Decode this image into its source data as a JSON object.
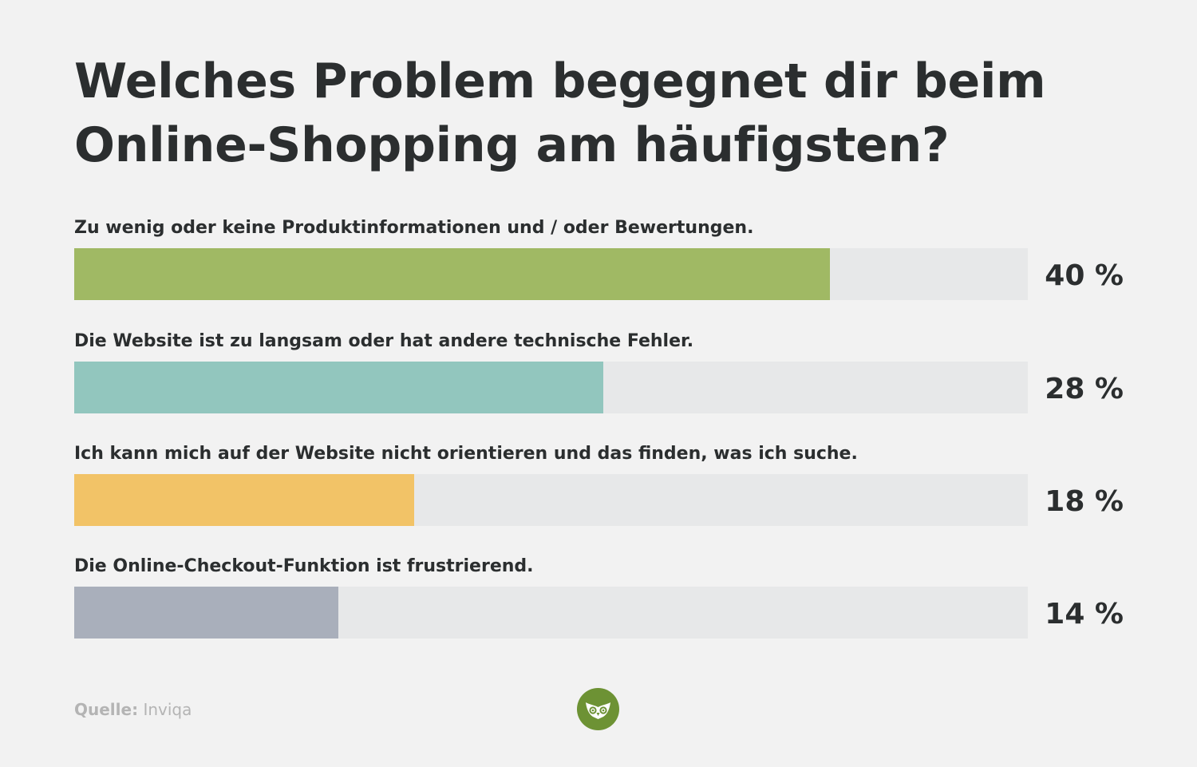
{
  "chart_data": {
    "type": "bar",
    "orientation": "horizontal",
    "title": "Welches Problem begegnet dir beim Online-Shopping am häufigsten?",
    "categories": [
      "Zu wenig oder keine Produktinformationen und / oder Bewertungen.",
      "Die Website ist zu langsam oder hat andere technische Fehler.",
      "Ich kann mich auf der Website nicht orientieren und das finden, was ich suche.",
      "Die Online-Checkout-Funktion ist frustrierend."
    ],
    "values": [
      40,
      28,
      18,
      14
    ],
    "value_labels": [
      "40 %",
      "28 %",
      "18 %",
      "14 %"
    ],
    "colors": [
      "#a0b964",
      "#92c6be",
      "#f2c367",
      "#a9afbb"
    ],
    "track_color": "#e7e8e9",
    "xlim": [
      0,
      50.5
    ],
    "unit": "%",
    "grid": false,
    "legend": "none"
  },
  "source": {
    "label": "Quelle:",
    "value": "Inviqa"
  },
  "logo": {
    "icon": "owl-icon",
    "color": "#6d9234"
  }
}
